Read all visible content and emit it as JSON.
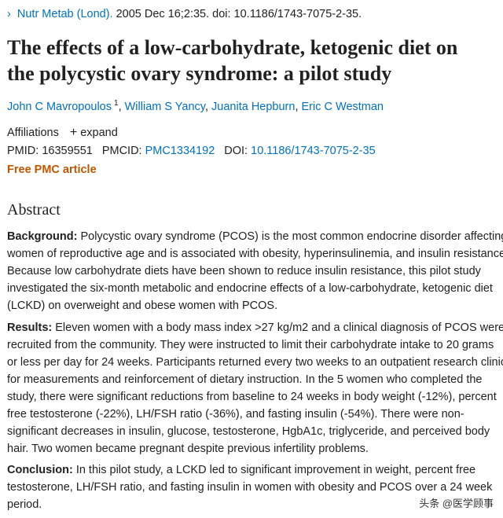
{
  "citation": {
    "arrow": "›",
    "journal": "Nutr Metab (Lond).",
    "details": "2005 Dec 16;2:35. doi: 10.1186/1743-7075-2-35."
  },
  "title": {
    "line1": "The effects of a low-carbohydrate, ketogenic diet on",
    "line2": "the polycystic ovary syndrome: a pilot study"
  },
  "authors": [
    {
      "name": "John C Mavropoulos",
      "affil": "1"
    },
    {
      "name": "William S Yancy"
    },
    {
      "name": "Juanita Hepburn"
    },
    {
      "name": "Eric C Westman"
    }
  ],
  "affiliations": {
    "label": "Affiliations",
    "expand_icon": "plus-icon",
    "expand_label": "expand"
  },
  "ids": {
    "pmid_label": "PMID:",
    "pmid": "16359551",
    "pmcid_label": "PMCID:",
    "pmcid": "PMC1334192",
    "doi_label": "DOI:",
    "doi": "10.1186/1743-7075-2-35"
  },
  "free_article": "Free PMC article",
  "abstract": {
    "heading": "Abstract",
    "background": {
      "label": "Background:",
      "lines": [
        "Polycystic ovary syndrome (PCOS) is the most common endocrine disorder affecting",
        "women of reproductive age and is associated with obesity, hyperinsulinemia, and insulin resistance.",
        "Because low carbohydrate diets have been shown to reduce insulin resistance, this pilot study",
        "investigated the six-month metabolic and endocrine effects of a low-carbohydrate, ketogenic diet",
        "(LCKD) on overweight and obese women with PCOS."
      ]
    },
    "results": {
      "label": "Results:",
      "lines": [
        "Eleven women with a body mass index >27 kg/m2 and a clinical diagnosis of PCOS were",
        "recruited from the community. They were instructed to limit their carbohydrate intake to 20 grams",
        "or less per day for 24 weeks. Participants returned every two weeks to an outpatient research clinic",
        "for measurements and reinforcement of dietary instruction. In the 5 women who completed the",
        "study, there were significant reductions from baseline to 24 weeks in body weight (-12%), percent",
        "free testosterone (-22%), LH/FSH ratio (-36%), and fasting insulin (-54%). There were non-",
        "significant decreases in insulin, glucose, testosterone, HgbA1c, triglyceride, and perceived body",
        "hair. Two women became pregnant despite previous infertility problems."
      ]
    },
    "conclusion": {
      "label": "Conclusion:",
      "lines": [
        "In this pilot study, a LCKD led to significant improvement in weight, percent free",
        "testosterone, LH/FSH ratio, and fasting insulin in women with obesity and PCOS over a 24 week",
        "period."
      ]
    }
  },
  "watermark": "头条 @医学顾事",
  "colors": {
    "link": "#0071bc",
    "free_article": "#c05600",
    "text": "#212121"
  }
}
